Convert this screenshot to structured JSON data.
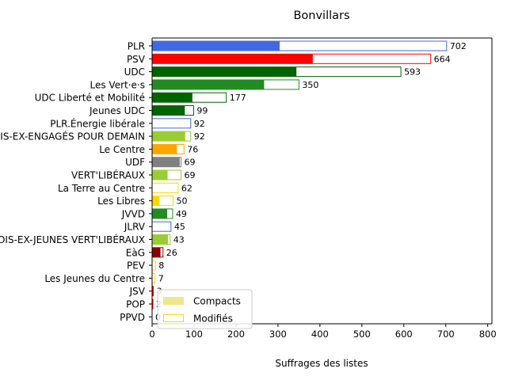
{
  "chart_data": {
    "type": "bar",
    "orientation": "horizontal",
    "title": "Bonvillars",
    "xlabel": "Suffrages des listes",
    "ylabel": "",
    "xlim": [
      0,
      810
    ],
    "xticks": [
      0,
      100,
      200,
      300,
      400,
      500,
      600,
      700,
      800
    ],
    "grid": false,
    "legend": {
      "placement": "lower-left",
      "entries": [
        "Compacts",
        "Modifiés"
      ]
    },
    "categories": [
      "PLR",
      "PSV",
      "UDC",
      "Les Vert·e·s",
      "UDC Liberté et Mobilité",
      "Jeunes UDC",
      "PLR.Énergie libérale",
      "LES VAUDOIS-EX-ENGAGÉS POUR DEMAIN",
      "Le Centre",
      "UDF",
      "VERT'LIBÉRAUX",
      "La Terre au Centre",
      "Les Libres",
      "JVVD",
      "JLRV",
      "LES VAUDOIS-EX-JEUNES VERT'LIBÉRAUX",
      "EàG",
      "PEV",
      "Les Jeunes du Centre",
      "JSV",
      "POP",
      "PPVD"
    ],
    "colors": [
      "#4169e1",
      "#ff0000",
      "#006400",
      "#228b22",
      "#006400",
      "#006400",
      "#4169e1",
      "#9acd32",
      "#ffa500",
      "#808080",
      "#9acd32",
      "#ffd700",
      "#ffd700",
      "#228b22",
      "#4169e1",
      "#9acd32",
      "#8b0000",
      "#ffd700",
      "#ffd700",
      "#ff0000",
      "#ff0000",
      "#4169e1"
    ],
    "series": [
      {
        "name": "Compacts",
        "values": [
          303,
          382,
          343,
          266,
          95,
          77,
          0,
          78,
          58,
          65,
          36,
          0,
          16,
          35,
          0,
          37,
          19,
          0,
          0,
          2,
          1,
          0
        ]
      },
      {
        "name": "Modifiés",
        "values": [
          399,
          282,
          250,
          84,
          82,
          22,
          92,
          14,
          18,
          4,
          33,
          62,
          34,
          14,
          45,
          6,
          7,
          8,
          7,
          1,
          1,
          0
        ]
      }
    ],
    "totals": [
      702,
      664,
      593,
      350,
      177,
      99,
      92,
      92,
      76,
      69,
      69,
      62,
      50,
      49,
      45,
      43,
      26,
      8,
      7,
      3,
      2,
      0
    ],
    "legend_colors": {
      "compact_fill": "#f0e68c",
      "modified_edge": "#ffd700"
    }
  }
}
